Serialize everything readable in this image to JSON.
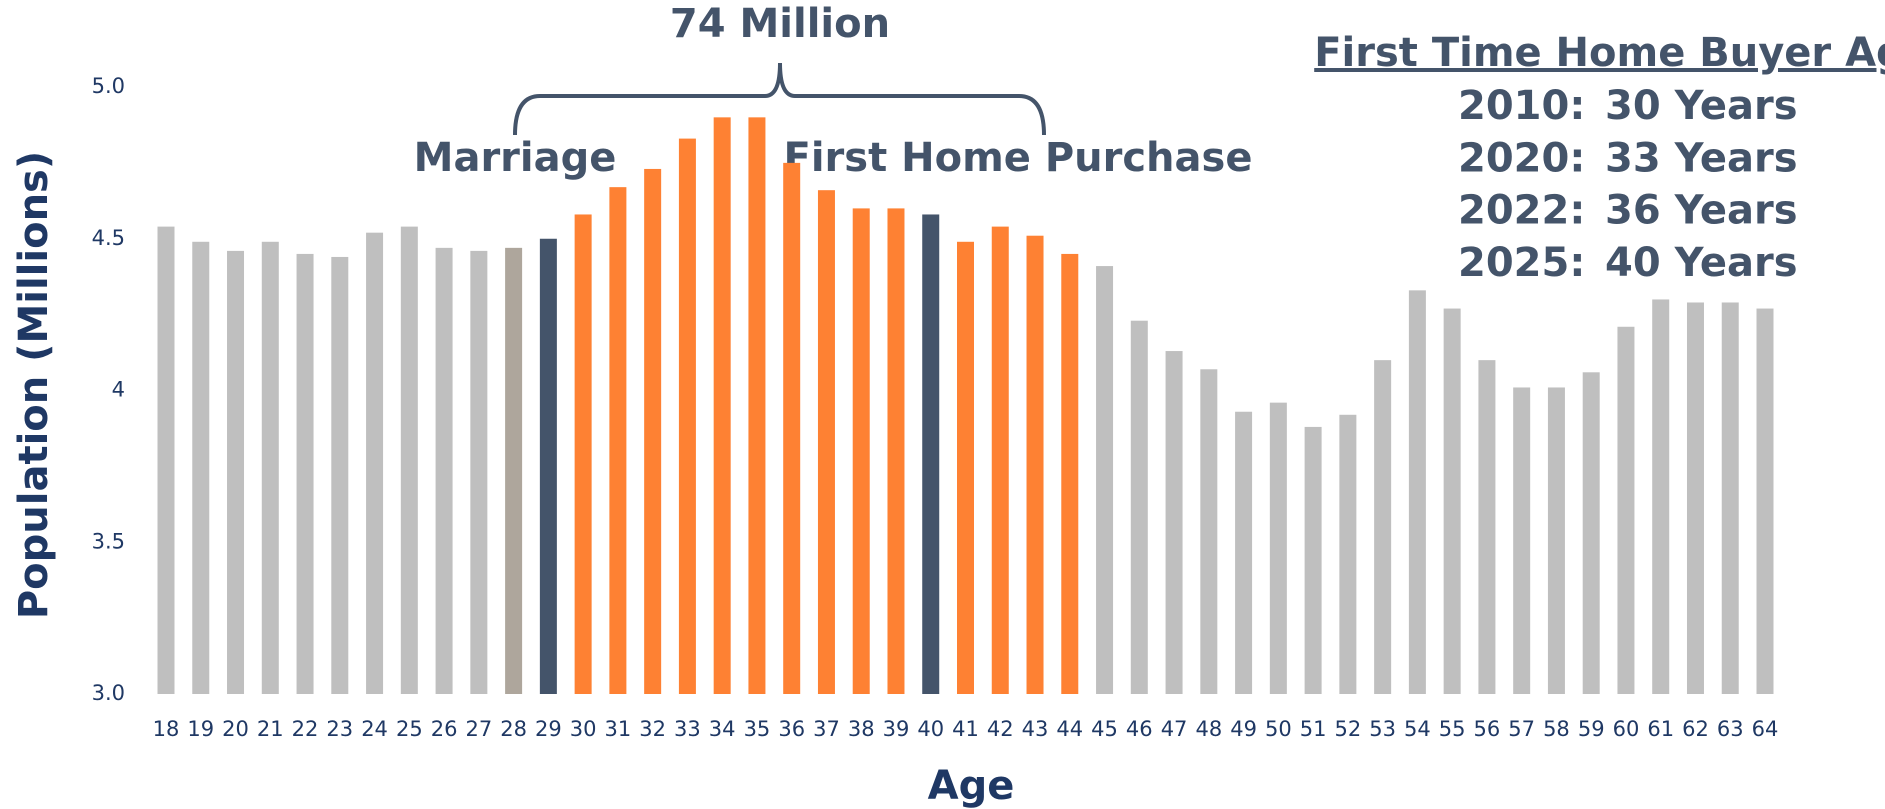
{
  "chart_data": {
    "type": "bar",
    "y_label": "Population (Millions)",
    "x_label": "Age",
    "categories": [
      "18",
      "19",
      "20",
      "21",
      "22",
      "23",
      "24",
      "25",
      "26",
      "27",
      "28",
      "29",
      "30",
      "31",
      "32",
      "33",
      "34",
      "35",
      "36",
      "37",
      "38",
      "39",
      "40",
      "41",
      "42",
      "43",
      "44",
      "45",
      "46",
      "47",
      "48",
      "49",
      "50",
      "51",
      "52",
      "53",
      "54",
      "55",
      "56",
      "57",
      "58",
      "59",
      "60",
      "61",
      "62",
      "63",
      "64"
    ],
    "values": [
      4.54,
      4.49,
      4.46,
      4.49,
      4.45,
      4.44,
      4.52,
      4.54,
      4.47,
      4.46,
      4.47,
      4.5,
      4.58,
      4.67,
      4.73,
      4.83,
      4.9,
      4.9,
      4.75,
      4.66,
      4.6,
      4.6,
      4.58,
      4.49,
      4.54,
      4.51,
      4.45,
      4.41,
      4.23,
      4.13,
      4.07,
      3.93,
      3.96,
      3.88,
      3.92,
      4.1,
      4.33,
      4.27,
      4.1,
      4.01,
      4.01,
      4.06,
      4.21,
      4.3,
      4.29,
      4.29,
      4.27
    ],
    "colors": [
      "#bfbfbf",
      "#bfbfbf",
      "#bfbfbf",
      "#bfbfbf",
      "#bfbfbf",
      "#bfbfbf",
      "#bfbfbf",
      "#bfbfbf",
      "#bfbfbf",
      "#bfbfbf",
      "#aea69c",
      "#44546a",
      "#fe8133",
      "#fe8133",
      "#fe8133",
      "#fe8133",
      "#fe8133",
      "#fe8133",
      "#fe8133",
      "#fe8133",
      "#fe8133",
      "#fe8133",
      "#44546a",
      "#fe8133",
      "#fe8133",
      "#fe8133",
      "#fe8133",
      "#bfbfbf",
      "#bfbfbf",
      "#bfbfbf",
      "#bfbfbf",
      "#bfbfbf",
      "#bfbfbf",
      "#bfbfbf",
      "#bfbfbf",
      "#bfbfbf",
      "#bfbfbf",
      "#bfbfbf",
      "#bfbfbf",
      "#bfbfbf",
      "#bfbfbf",
      "#bfbfbf",
      "#bfbfbf",
      "#bfbfbf",
      "#bfbfbf",
      "#bfbfbf",
      "#bfbfbf"
    ],
    "ylim": [
      3.0,
      5.0
    ],
    "yticks": [
      {
        "value": 3.0,
        "label": "3.0"
      },
      3.5,
      4.0,
      4.5,
      {
        "value": 5.0,
        "label": "5.0"
      }
    ],
    "annotations": {
      "total": "74 Million",
      "left": "Marriage",
      "right": "First Home Purchase"
    },
    "buyer_age": {
      "title": "First Time Home Buyer Age",
      "rows": [
        {
          "year": "2010:",
          "age": "30 Years"
        },
        {
          "year": "2020:",
          "age": "33 Years"
        },
        {
          "year": "2022:",
          "age": "36 Years"
        },
        {
          "year": "2025:",
          "age": "40 Years"
        }
      ]
    }
  }
}
